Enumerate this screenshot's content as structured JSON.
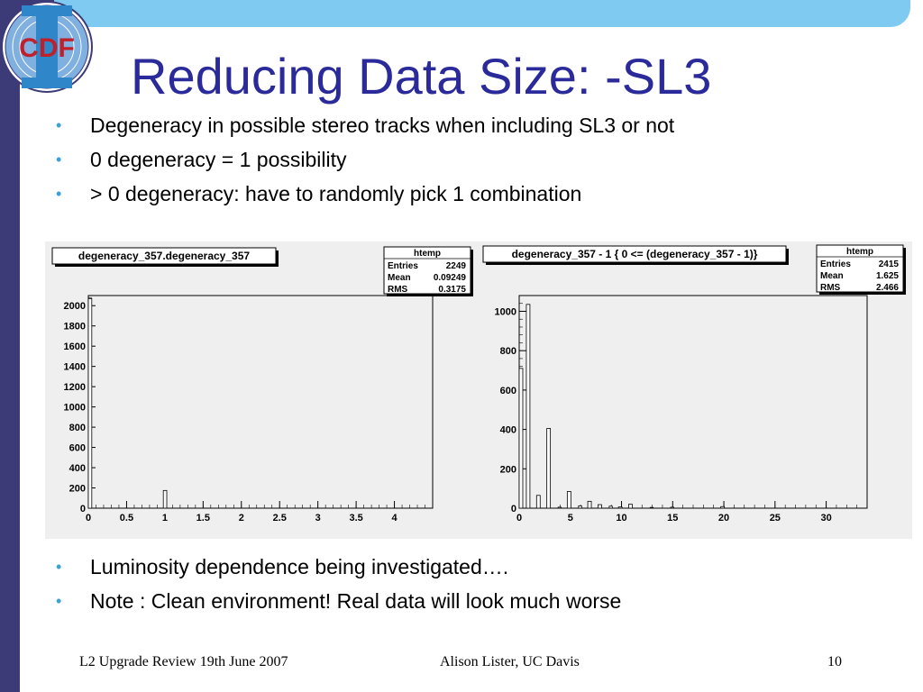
{
  "title": "Reducing Data Size: -SL3",
  "logo_text": "CDF",
  "bullets_top": [
    "Degeneracy in possible stereo tracks when including SL3 or not",
    "0 degeneracy = 1 possibility",
    "> 0 degeneracy: have to randomly pick 1 combination"
  ],
  "bullets_bottom": [
    "Luminosity dependence being investigated….",
    "Note : Clean environment! Real data will look much worse"
  ],
  "footer": {
    "left": "L2  Upgrade Review 19th June 2007",
    "center": "Alison Lister, UC Davis",
    "page": "10"
  },
  "colors": {
    "title": "#2b2a9a",
    "bullet": "#3aa0d8",
    "top_bar": "#7fcaf0",
    "side_bar": "#3d3a78"
  },
  "chart_data": [
    {
      "type": "bar",
      "title": "degeneracy_357.degeneracy_357",
      "stats": {
        "name": "htemp",
        "rows": [
          [
            "Entries",
            "2249"
          ],
          [
            "Mean",
            "0.09249"
          ],
          [
            "RMS",
            "0.3175"
          ]
        ]
      },
      "xlim": [
        0,
        4.5
      ],
      "ylim": [
        0,
        2100
      ],
      "xticks": [
        "0",
        "0.5",
        "1",
        "1.5",
        "2",
        "2.5",
        "3",
        "3.5",
        "4"
      ],
      "xtick_values": [
        0,
        0.5,
        1,
        1.5,
        2,
        2.5,
        3,
        3.5,
        4
      ],
      "yticks": [
        "0",
        "200",
        "400",
        "600",
        "800",
        "1000",
        "1200",
        "1400",
        "1600",
        "1800",
        "2000"
      ],
      "ytick_values": [
        0,
        200,
        400,
        600,
        800,
        1000,
        1200,
        1400,
        1600,
        1800,
        2000
      ],
      "bars": [
        {
          "x0": 0,
          "x1": 0.045,
          "y": 2070
        },
        {
          "x0": 0.98,
          "x1": 1.025,
          "y": 175
        }
      ]
    },
    {
      "type": "bar",
      "title": "degeneracy_357 - 1 { 0 <= (degeneracy_357 - 1)}",
      "stats": {
        "name": "htemp",
        "rows": [
          [
            "Entries",
            "2415"
          ],
          [
            "Mean",
            "1.625"
          ],
          [
            "RMS",
            "2.466"
          ]
        ]
      },
      "xlim": [
        0,
        34
      ],
      "ylim": [
        0,
        1080
      ],
      "xticks": [
        "0",
        "5",
        "10",
        "15",
        "20",
        "25",
        "30"
      ],
      "xtick_values": [
        0,
        5,
        10,
        15,
        20,
        25,
        30
      ],
      "yticks": [
        "0",
        "200",
        "400",
        "600",
        "800",
        "1000"
      ],
      "ytick_values": [
        0,
        200,
        400,
        600,
        800,
        1000
      ],
      "bars": [
        {
          "x0": 0,
          "x1": 0.35,
          "y": 710
        },
        {
          "x0": 0.7,
          "x1": 1.05,
          "y": 1035
        },
        {
          "x0": 1.7,
          "x1": 2.05,
          "y": 65
        },
        {
          "x0": 2.7,
          "x1": 3.05,
          "y": 405
        },
        {
          "x0": 3.8,
          "x1": 4.1,
          "y": 5
        },
        {
          "x0": 4.7,
          "x1": 5.05,
          "y": 85
        },
        {
          "x0": 5.8,
          "x1": 6.1,
          "y": 12
        },
        {
          "x0": 6.7,
          "x1": 7.05,
          "y": 35
        },
        {
          "x0": 7.7,
          "x1": 8.05,
          "y": 18
        },
        {
          "x0": 8.8,
          "x1": 9.1,
          "y": 10
        },
        {
          "x0": 9.7,
          "x1": 10.05,
          "y": 6
        },
        {
          "x0": 10.7,
          "x1": 11.05,
          "y": 20
        },
        {
          "x0": 12.8,
          "x1": 13.1,
          "y": 4
        },
        {
          "x0": 14.8,
          "x1": 15.1,
          "y": 5
        },
        {
          "x0": 19.7,
          "x1": 20.05,
          "y": 8
        }
      ]
    }
  ]
}
